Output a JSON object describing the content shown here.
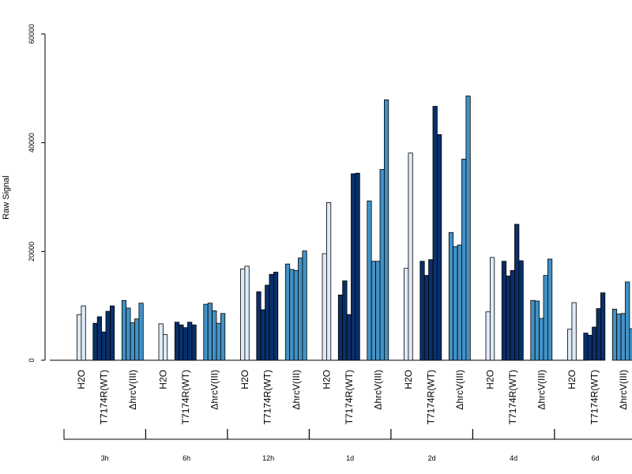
{
  "chart_data": {
    "type": "bar",
    "ylabel": "Raw Signal",
    "ylim": [
      0,
      60000
    ],
    "yticks": [
      0,
      20000,
      40000,
      60000
    ],
    "yticklabels": [
      "0",
      "20000",
      "40000",
      "60000"
    ],
    "grid": false,
    "legend": "none",
    "timepoints": [
      {
        "label": "3h",
        "groups": [
          {
            "name": "H2O",
            "values": [
              8400,
              10000
            ]
          },
          {
            "name": "T7174R(WT)",
            "values": [
              6800,
              8000,
              5200,
              9000,
              10000
            ]
          },
          {
            "name": "ΔhrcV(III)",
            "values": [
              11000,
              9600,
              6900,
              7600,
              10500
            ]
          }
        ]
      },
      {
        "label": "6h",
        "groups": [
          {
            "name": "H2O",
            "values": [
              6700,
              4700
            ]
          },
          {
            "name": "T7174R(WT)",
            "values": [
              7000,
              6500,
              6000,
              7000,
              6500
            ]
          },
          {
            "name": "ΔhrcV(III)",
            "values": [
              10300,
              10500,
              9100,
              6800,
              8600
            ]
          }
        ]
      },
      {
        "label": "12h",
        "groups": [
          {
            "name": "H2O",
            "values": [
              16800,
              17300
            ]
          },
          {
            "name": "T7174R(WT)",
            "values": [
              12600,
              9300,
              13800,
              15800,
              16200
            ]
          },
          {
            "name": "ΔhrcV(III)",
            "values": [
              17700,
              16700,
              16500,
              18800,
              20100
            ]
          }
        ]
      },
      {
        "label": "1d",
        "groups": [
          {
            "name": "H2O",
            "values": [
              19600,
              29000
            ]
          },
          {
            "name": "T7174R(WT)",
            "values": [
              12000,
              14600,
              8400,
              34300,
              34400
            ]
          },
          {
            "name": "ΔhrcV(III)",
            "values": [
              29300,
              18200,
              18200,
              35100,
              47900
            ]
          }
        ]
      },
      {
        "label": "2d",
        "groups": [
          {
            "name": "H2O",
            "values": [
              16900,
              38100
            ]
          },
          {
            "name": "T7174R(WT)",
            "values": [
              18200,
              15600,
              18500,
              46700,
              41500
            ]
          },
          {
            "name": "ΔhrcV(III)",
            "values": [
              23500,
              20900,
              21200,
              37000,
              48600
            ]
          }
        ]
      },
      {
        "label": "4d",
        "groups": [
          {
            "name": "H2O",
            "values": [
              8900,
              18900
            ]
          },
          {
            "name": "T7174R(WT)",
            "values": [
              18200,
              15500,
              16500,
              25000,
              18300
            ]
          },
          {
            "name": "ΔhrcV(III)",
            "values": [
              11000,
              10900,
              7700,
              15600,
              18600
            ]
          }
        ]
      },
      {
        "label": "6d",
        "groups": [
          {
            "name": "H2O",
            "values": [
              5700,
              10600
            ]
          },
          {
            "name": "T7174R(WT)",
            "values": [
              5000,
              4600,
              6100,
              9500,
              12400
            ]
          },
          {
            "name": "ΔhrcV(III)",
            "values": [
              9400,
              8500,
              8600,
              14400,
              5800
            ]
          }
        ]
      }
    ],
    "colors": {
      "H2O": "#deebf7",
      "T7174R(WT)": "#08306b",
      "ΔhrcV(III)": "#4292c6",
      "stroke": "#000000"
    }
  }
}
